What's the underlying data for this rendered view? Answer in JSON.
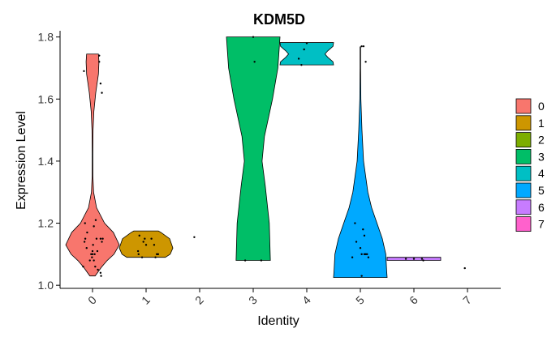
{
  "chart_data": {
    "type": "violin",
    "title": "KDM5D",
    "xlabel": "Identity",
    "ylabel": "Expression Level",
    "categories": [
      "0",
      "1",
      "2",
      "3",
      "4",
      "5",
      "6",
      "7"
    ],
    "ylim": [
      0.99,
      1.82
    ],
    "yticks": [
      1.0,
      1.2,
      1.4,
      1.6,
      1.8
    ],
    "ytick_labels": [
      "1.0",
      "1.2",
      "1.4",
      "1.6",
      "1.8"
    ],
    "colors": [
      "#F8766D",
      "#CD9600",
      "#7CAE00",
      "#00BE67",
      "#00BFC4",
      "#00A9FF",
      "#C77CFF",
      "#FF61CC"
    ],
    "legend": {
      "position": "right",
      "entries": [
        "0",
        "1",
        "2",
        "3",
        "4",
        "5",
        "6",
        "7"
      ]
    },
    "series": [
      {
        "name": "0",
        "violin": [
          [
            1.03,
            0.1
          ],
          [
            1.06,
            0.35
          ],
          [
            1.08,
            0.55
          ],
          [
            1.1,
            0.8
          ],
          [
            1.13,
            1.0
          ],
          [
            1.17,
            0.78
          ],
          [
            1.2,
            0.45
          ],
          [
            1.25,
            0.15
          ],
          [
            1.3,
            0.04
          ],
          [
            1.35,
            0.015
          ],
          [
            1.42,
            0.012
          ],
          [
            1.5,
            0.02
          ],
          [
            1.56,
            0.05
          ],
          [
            1.62,
            0.12
          ],
          [
            1.68,
            0.22
          ],
          [
            1.72,
            0.24
          ],
          [
            1.745,
            0.22
          ]
        ],
        "points": [
          [
            -0.32,
            1.69
          ],
          [
            0.25,
            1.74
          ],
          [
            0.25,
            1.72
          ],
          [
            0.3,
            1.65
          ],
          [
            0.35,
            1.62
          ],
          [
            -0.28,
            1.2
          ],
          [
            -0.2,
            1.17
          ],
          [
            0.12,
            1.21
          ],
          [
            0.05,
            1.19
          ],
          [
            -0.3,
            1.14
          ],
          [
            -0.27,
            1.15
          ],
          [
            -0.22,
            1.12
          ],
          [
            0.02,
            1.13
          ],
          [
            0.15,
            1.15
          ],
          [
            0.18,
            1.11
          ],
          [
            0.3,
            1.15
          ],
          [
            0.35,
            1.14
          ],
          [
            0.38,
            1.15
          ],
          [
            -0.05,
            1.1
          ],
          [
            -0.02,
            1.09
          ],
          [
            0.0,
            1.11
          ],
          [
            0.08,
            1.1
          ],
          [
            -0.1,
            1.08
          ],
          [
            0.1,
            1.06
          ],
          [
            -0.35,
            1.06
          ],
          [
            0.2,
            1.05
          ],
          [
            0.3,
            1.04
          ],
          [
            0.32,
            1.03
          ],
          [
            0.0,
            1.1
          ],
          [
            0.05,
            1.08
          ]
        ]
      },
      {
        "name": "1",
        "violin": [
          [
            1.09,
            0.72
          ],
          [
            1.1,
            0.9
          ],
          [
            1.12,
            1.0
          ],
          [
            1.15,
            0.88
          ],
          [
            1.17,
            0.56
          ],
          [
            1.175,
            0.46
          ]
        ],
        "points": [
          [
            -0.25,
            1.16
          ],
          [
            -0.1,
            1.14
          ],
          [
            -0.05,
            1.15
          ],
          [
            0.0,
            1.13
          ],
          [
            0.2,
            1.15
          ],
          [
            0.3,
            1.13
          ],
          [
            -0.3,
            1.11
          ],
          [
            -0.28,
            1.1
          ],
          [
            -0.15,
            1.09
          ],
          [
            0.35,
            1.09
          ],
          [
            0.4,
            1.1
          ],
          [
            0.45,
            1.1
          ]
        ]
      },
      {
        "name": "2",
        "violin": [],
        "points": [
          [
            -0.2,
            1.155
          ]
        ]
      },
      {
        "name": "3",
        "violin": [
          [
            1.08,
            0.64
          ],
          [
            1.2,
            0.6
          ],
          [
            1.32,
            0.45
          ],
          [
            1.4,
            0.33
          ],
          [
            1.48,
            0.42
          ],
          [
            1.6,
            0.72
          ],
          [
            1.7,
            0.92
          ],
          [
            1.8,
            1.0
          ]
        ],
        "points": [
          [
            0.0,
            1.8
          ],
          [
            0.05,
            1.72
          ],
          [
            -0.3,
            1.08
          ],
          [
            0.3,
            1.08
          ]
        ]
      },
      {
        "name": "4",
        "violin": [
          [
            1.71,
            1.0
          ],
          [
            1.72,
            0.98
          ],
          [
            1.735,
            0.78
          ],
          [
            1.745,
            0.68
          ],
          [
            1.755,
            0.78
          ],
          [
            1.77,
            0.98
          ],
          [
            1.782,
            1.0
          ]
        ],
        "points": [
          [
            -0.2,
            1.71
          ],
          [
            -0.3,
            1.73
          ],
          [
            -0.1,
            1.76
          ],
          [
            0.0,
            1.78
          ]
        ]
      },
      {
        "name": "5",
        "violin": [
          [
            1.025,
            1.0
          ],
          [
            1.05,
            0.98
          ],
          [
            1.1,
            0.95
          ],
          [
            1.15,
            0.82
          ],
          [
            1.2,
            0.62
          ],
          [
            1.25,
            0.42
          ],
          [
            1.3,
            0.28
          ],
          [
            1.4,
            0.12
          ],
          [
            1.5,
            0.06
          ],
          [
            1.6,
            0.02
          ],
          [
            1.7,
            0.01
          ],
          [
            1.768,
            0.01
          ]
        ],
        "points": [
          [
            0.05,
            1.77
          ],
          [
            0.12,
            1.77
          ],
          [
            0.2,
            1.72
          ],
          [
            -0.2,
            1.2
          ],
          [
            0.1,
            1.18
          ],
          [
            0.15,
            1.16
          ],
          [
            -0.15,
            1.14
          ],
          [
            0.0,
            1.12
          ],
          [
            0.05,
            1.1
          ],
          [
            0.15,
            1.1
          ],
          [
            0.2,
            1.1
          ],
          [
            0.25,
            1.1
          ],
          [
            0.3,
            1.09
          ],
          [
            -0.3,
            1.09
          ],
          [
            0.05,
            1.03
          ]
        ]
      },
      {
        "name": "6",
        "violin": [
          [
            1.08,
            1.0
          ],
          [
            1.09,
            1.0
          ]
        ],
        "points": [
          [
            -0.3,
            1.085
          ],
          [
            0.0,
            1.085
          ],
          [
            0.3,
            1.085
          ],
          [
            0.35,
            1.08
          ]
        ]
      },
      {
        "name": "7",
        "violin": [],
        "points": [
          [
            -0.1,
            1.055
          ]
        ]
      }
    ]
  }
}
